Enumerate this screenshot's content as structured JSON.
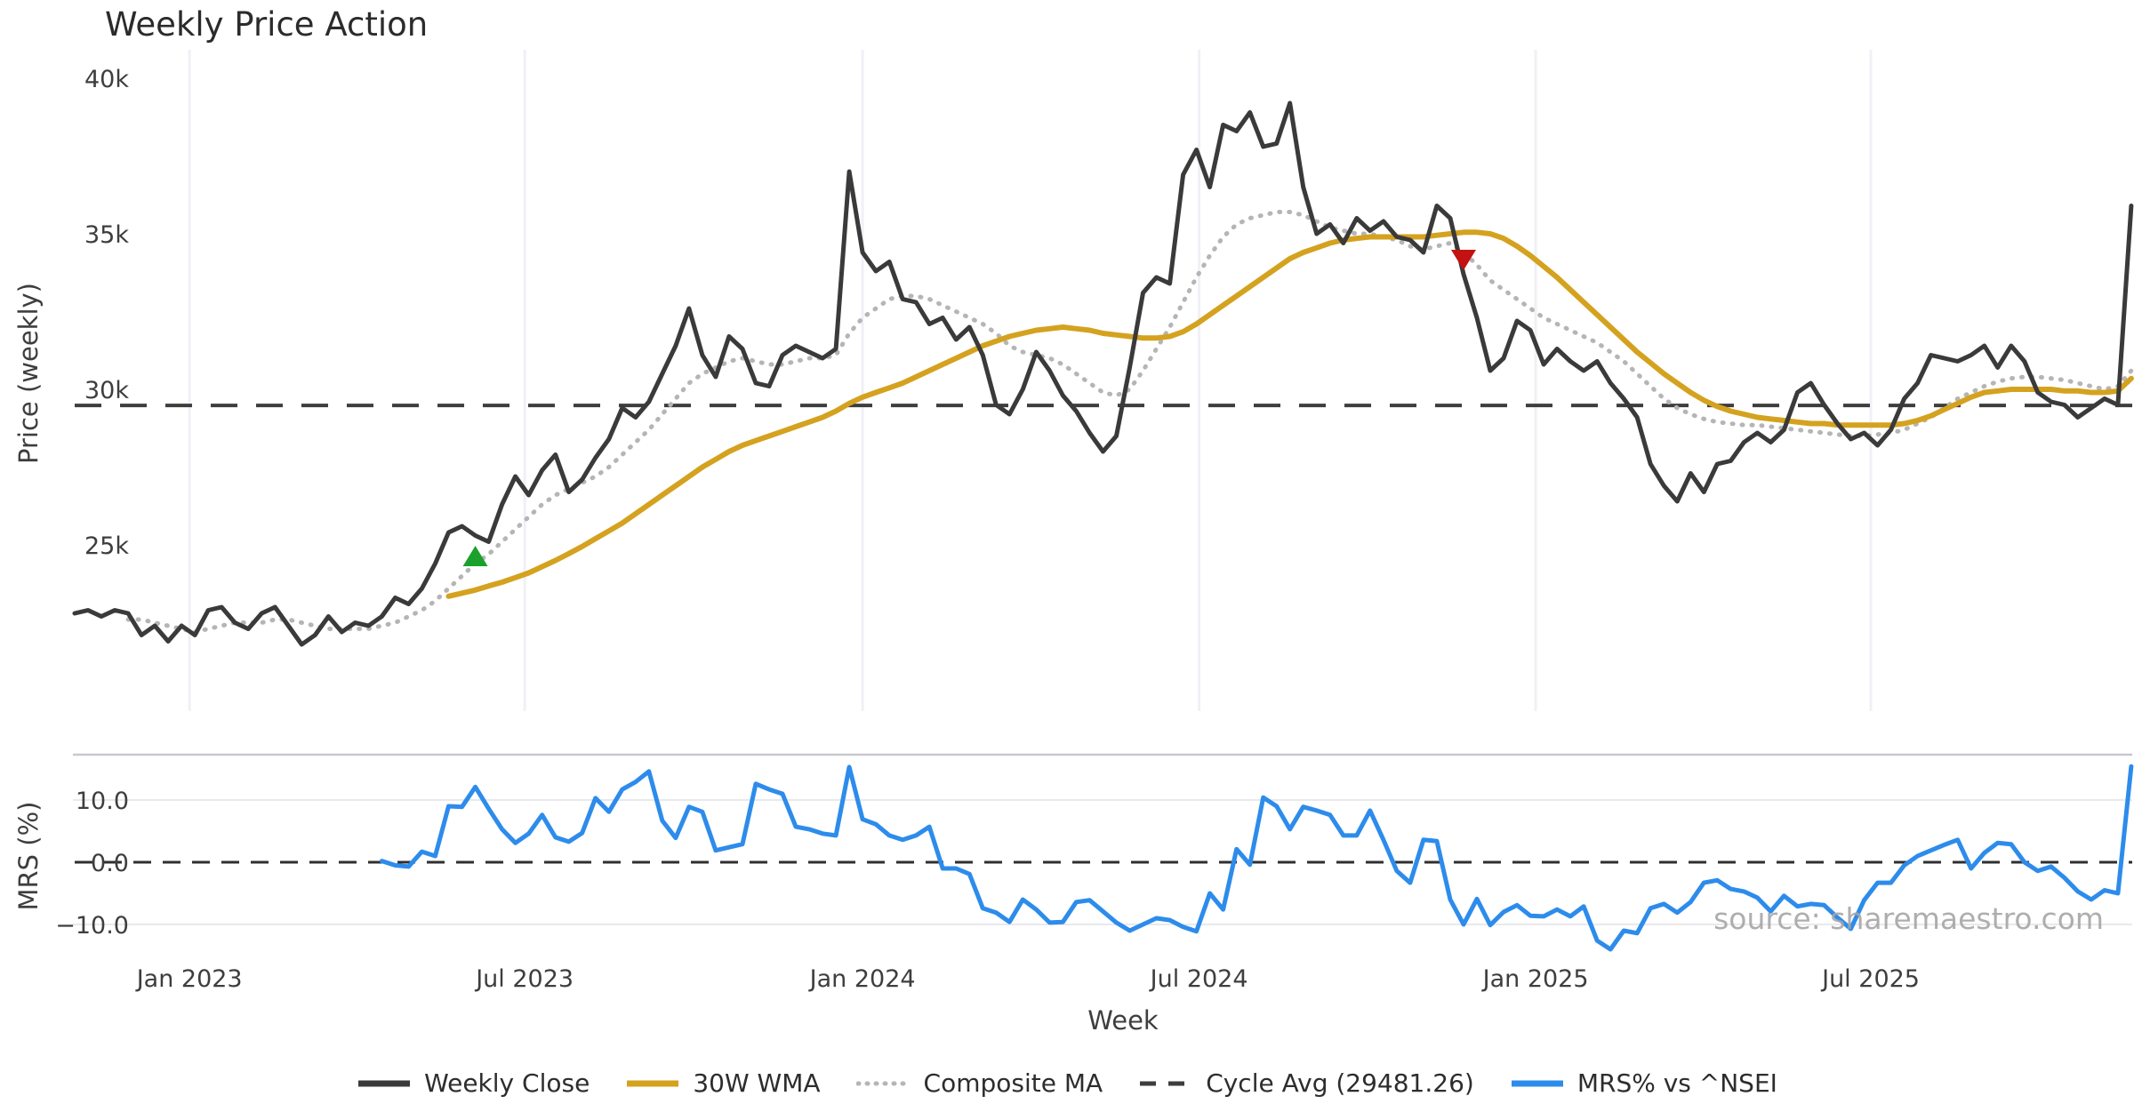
{
  "title": "Weekly Price Action",
  "watermark": "source: sharemaestro.com",
  "colors": {
    "close": "#3a3a3a",
    "wma": "#d4a21f",
    "composite": "#b5b5b5",
    "cycle_avg": "#3d3d3d",
    "mrs": "#2d8ceb",
    "marker_buy": "#1CA02C",
    "marker_sell": "#C41111",
    "grid_vertical": "#f0f0f6",
    "grid_horizontal": "#e9e9ee",
    "panel_border": "#c7c8ce",
    "zero_line": "#2f2f2f"
  },
  "legend": {
    "items": [
      {
        "label": "Weekly Close",
        "series": "close",
        "style": "solid"
      },
      {
        "label": "30W WMA",
        "series": "wma",
        "style": "solid"
      },
      {
        "label": "Composite MA",
        "series": "composite",
        "style": "dotted"
      },
      {
        "label": "Cycle Avg (29481.26)",
        "series": "cycle_avg",
        "style": "dashed"
      },
      {
        "label": "MRS% vs ^NSEI",
        "series": "mrs",
        "style": "solid"
      }
    ]
  },
  "chart_data": {
    "type": "line",
    "xlabel": "Week",
    "x_ticks": [
      {
        "label": "Jan 2023",
        "week": 8.6
      },
      {
        "label": "Jul 2023",
        "week": 33.7
      },
      {
        "label": "Jan 2024",
        "week": 59.0
      },
      {
        "label": "Jul 2024",
        "week": 84.2
      },
      {
        "label": "Jan 2025",
        "week": 109.4
      },
      {
        "label": "Jul 2025",
        "week": 134.5
      }
    ],
    "panels": [
      {
        "id": "price",
        "ylabel": "Price (weekly)",
        "unit": "thousand",
        "y_ticks": [
          {
            "label": "40k",
            "value": 40
          },
          {
            "label": "35k",
            "value": 35
          },
          {
            "label": "30k",
            "value": 30
          },
          {
            "label": "25k",
            "value": 25
          }
        ],
        "ylim": [
          20.5,
          40.9
        ]
      },
      {
        "id": "mrs",
        "ylabel": "MRS (%)",
        "y_ticks": [
          {
            "label": "10.0",
            "value": 10
          },
          {
            "label": "0.0",
            "value": 0
          },
          {
            "label": "−10.0",
            "value": -10
          }
        ],
        "ylim": [
          -17.5,
          17.5
        ]
      }
    ],
    "reference_lines": [
      {
        "name": "Cycle Avg",
        "panel": "price",
        "value": 29.48126,
        "label_value": 29481.26,
        "style": "dashed"
      },
      {
        "name": "Zero",
        "panel": "mrs",
        "value": 0,
        "style": "dashed"
      }
    ],
    "markers": [
      {
        "shape": "triangle-up",
        "name": "buy-signal",
        "week": 30,
        "value": 24.6
      },
      {
        "shape": "triangle-down",
        "name": "sell-signal",
        "week": 104,
        "value": 34.2
      }
    ],
    "series": [
      {
        "name": "Weekly Close",
        "panel": "price",
        "key": "close",
        "style": "solid",
        "width": 5,
        "values": [
          22.8,
          22.9,
          22.7,
          22.9,
          22.8,
          22.1,
          22.4,
          21.9,
          22.4,
          22.1,
          22.9,
          23.0,
          22.5,
          22.3,
          22.8,
          23.0,
          22.4,
          21.8,
          22.1,
          22.7,
          22.2,
          22.5,
          22.4,
          22.7,
          23.3,
          23.1,
          23.6,
          24.4,
          25.4,
          25.6,
          25.3,
          25.1,
          26.3,
          27.2,
          26.6,
          27.4,
          27.9,
          26.7,
          27.1,
          27.8,
          28.4,
          29.4,
          29.1,
          29.6,
          30.5,
          31.4,
          32.6,
          31.1,
          30.4,
          31.7,
          31.3,
          30.2,
          30.1,
          31.1,
          31.4,
          31.2,
          31.0,
          31.3,
          37.0,
          34.4,
          33.8,
          34.1,
          32.9,
          32.8,
          32.1,
          32.3,
          31.6,
          32.0,
          31.1,
          29.5,
          29.2,
          30.0,
          31.2,
          30.6,
          29.8,
          29.3,
          28.6,
          28.0,
          28.5,
          30.7,
          33.1,
          33.6,
          33.4,
          36.9,
          37.7,
          36.5,
          38.5,
          38.3,
          38.9,
          37.8,
          37.9,
          39.2,
          36.5,
          35.0,
          35.3,
          34.7,
          35.5,
          35.1,
          35.4,
          34.9,
          34.8,
          34.4,
          35.9,
          35.5,
          33.7,
          32.3,
          30.6,
          31.0,
          32.2,
          31.9,
          30.8,
          31.3,
          30.9,
          30.6,
          30.9,
          30.2,
          29.7,
          29.1,
          27.6,
          26.9,
          26.4,
          27.3,
          26.7,
          27.6,
          27.7,
          28.3,
          28.6,
          28.3,
          28.7,
          29.9,
          30.2,
          29.5,
          28.9,
          28.4,
          28.6,
          28.2,
          28.7,
          29.7,
          30.2,
          31.1,
          31.0,
          30.9,
          31.1,
          31.4,
          30.7,
          31.4,
          30.9,
          29.9,
          29.6,
          29.5,
          29.1,
          29.4,
          29.7,
          29.5,
          35.9
        ]
      },
      {
        "name": "30W WMA",
        "panel": "price",
        "key": "wma",
        "style": "solid",
        "width": 6,
        "values": [
          null,
          null,
          null,
          null,
          null,
          null,
          null,
          null,
          null,
          null,
          null,
          null,
          null,
          null,
          null,
          null,
          null,
          null,
          null,
          null,
          null,
          null,
          null,
          null,
          null,
          null,
          null,
          null,
          23.35,
          23.45,
          23.55,
          23.68,
          23.8,
          23.95,
          24.1,
          24.3,
          24.5,
          24.72,
          24.95,
          25.2,
          25.45,
          25.7,
          26.0,
          26.3,
          26.6,
          26.9,
          27.2,
          27.5,
          27.75,
          28.0,
          28.2,
          28.35,
          28.5,
          28.65,
          28.8,
          28.95,
          29.1,
          29.3,
          29.55,
          29.75,
          29.9,
          30.05,
          30.2,
          30.4,
          30.6,
          30.8,
          31.0,
          31.2,
          31.4,
          31.55,
          31.7,
          31.8,
          31.9,
          31.95,
          32.0,
          31.95,
          31.9,
          31.8,
          31.75,
          31.7,
          31.65,
          31.65,
          31.7,
          31.85,
          32.1,
          32.4,
          32.7,
          33.0,
          33.3,
          33.6,
          33.9,
          34.2,
          34.4,
          34.55,
          34.7,
          34.8,
          34.85,
          34.9,
          34.9,
          34.9,
          34.9,
          34.9,
          34.95,
          35.0,
          35.05,
          35.05,
          35.0,
          34.85,
          34.6,
          34.3,
          33.95,
          33.6,
          33.2,
          32.8,
          32.4,
          32.0,
          31.6,
          31.2,
          30.85,
          30.5,
          30.2,
          29.9,
          29.65,
          29.45,
          29.3,
          29.2,
          29.1,
          29.05,
          29.0,
          28.95,
          28.9,
          28.9,
          28.85,
          28.85,
          28.85,
          28.85,
          28.85,
          28.9,
          29.0,
          29.15,
          29.35,
          29.55,
          29.75,
          29.9,
          29.95,
          30.0,
          30.0,
          30.0,
          30.0,
          29.95,
          29.95,
          29.9,
          29.9,
          29.95,
          30.35
        ]
      },
      {
        "name": "Composite MA",
        "panel": "price",
        "key": "composite",
        "style": "dotted",
        "width": 4.5,
        "values": [
          null,
          null,
          null,
          null,
          22.6,
          22.6,
          22.5,
          22.4,
          22.3,
          22.2,
          22.3,
          22.4,
          22.5,
          22.5,
          22.5,
          22.6,
          22.6,
          22.5,
          22.4,
          22.3,
          22.3,
          22.3,
          22.3,
          22.4,
          22.5,
          22.7,
          22.9,
          23.2,
          23.6,
          24.0,
          24.4,
          24.7,
          25.1,
          25.5,
          25.9,
          26.3,
          26.6,
          26.8,
          27.0,
          27.2,
          27.5,
          27.9,
          28.3,
          28.7,
          29.2,
          29.7,
          30.2,
          30.5,
          30.7,
          30.9,
          31.0,
          30.9,
          30.8,
          30.8,
          30.9,
          31.0,
          31.0,
          31.1,
          31.8,
          32.3,
          32.6,
          32.9,
          33.0,
          33.0,
          32.9,
          32.7,
          32.5,
          32.3,
          32.1,
          31.8,
          31.4,
          31.2,
          31.1,
          31.0,
          30.8,
          30.5,
          30.2,
          29.9,
          29.8,
          30.0,
          30.6,
          31.3,
          32.0,
          32.8,
          33.6,
          34.3,
          34.9,
          35.3,
          35.5,
          35.6,
          35.7,
          35.7,
          35.6,
          35.4,
          35.2,
          35.1,
          35.0,
          35.0,
          34.9,
          34.8,
          34.6,
          34.5,
          34.6,
          34.7,
          34.4,
          34.0,
          33.5,
          33.2,
          32.9,
          32.6,
          32.3,
          32.1,
          31.9,
          31.7,
          31.5,
          31.2,
          30.9,
          30.5,
          30.1,
          29.7,
          29.4,
          29.2,
          29.05,
          28.95,
          28.9,
          28.85,
          28.85,
          28.8,
          28.75,
          28.7,
          28.65,
          28.6,
          28.55,
          28.5,
          28.5,
          28.55,
          28.6,
          28.7,
          28.9,
          29.1,
          29.4,
          29.7,
          29.9,
          30.1,
          30.25,
          30.35,
          30.4,
          30.4,
          30.35,
          30.3,
          30.2,
          30.1,
          30.0,
          30.1,
          30.6
        ]
      },
      {
        "name": "MRS% vs ^NSEI",
        "panel": "mrs",
        "key": "mrs",
        "style": "solid",
        "width": 5,
        "values": [
          null,
          null,
          null,
          null,
          null,
          null,
          null,
          null,
          null,
          null,
          null,
          null,
          null,
          null,
          null,
          null,
          null,
          null,
          null,
          null,
          null,
          null,
          null,
          0.2,
          -0.5,
          -0.7,
          1.7,
          1.0,
          9.0,
          8.9,
          12.1,
          8.6,
          5.3,
          3.1,
          4.6,
          7.6,
          4.0,
          3.3,
          4.7,
          10.3,
          8.1,
          11.7,
          12.9,
          14.6,
          6.7,
          3.9,
          8.9,
          8.1,
          1.9,
          2.4,
          2.9,
          12.6,
          11.7,
          11.0,
          5.7,
          5.3,
          4.6,
          4.3,
          15.3,
          6.9,
          6.1,
          4.3,
          3.6,
          4.3,
          5.7,
          -1.0,
          -1.0,
          -1.9,
          -7.4,
          -8.1,
          -9.6,
          -6.0,
          -7.6,
          -9.7,
          -9.6,
          -6.4,
          -6.1,
          -7.9,
          -9.7,
          -11.0,
          -10.0,
          -9.0,
          -9.3,
          -10.4,
          -11.1,
          -5.0,
          -7.6,
          2.1,
          -0.4,
          10.4,
          9.0,
          5.3,
          8.9,
          8.3,
          7.6,
          4.3,
          4.3,
          8.3,
          3.6,
          -1.4,
          -3.3,
          3.6,
          3.4,
          -6.0,
          -10.0,
          -5.9,
          -10.1,
          -8.0,
          -6.9,
          -8.6,
          -8.7,
          -7.6,
          -8.7,
          -7.1,
          -12.6,
          -14.0,
          -11.0,
          -11.4,
          -7.4,
          -6.7,
          -8.1,
          -6.4,
          -3.3,
          -2.9,
          -4.3,
          -4.7,
          -5.7,
          -7.9,
          -5.4,
          -7.1,
          -6.7,
          -6.9,
          -8.9,
          -10.7,
          -6.1,
          -3.3,
          -3.3,
          -0.5,
          1.0,
          1.9,
          2.8,
          3.6,
          -1.0,
          1.5,
          3.1,
          2.9,
          0.0,
          -1.4,
          -0.7,
          -2.5,
          -4.7,
          -6.0,
          -4.5,
          -5.0,
          15.4
        ]
      }
    ]
  }
}
